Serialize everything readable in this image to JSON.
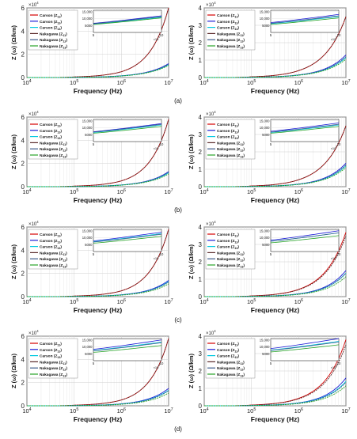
{
  "figure": {
    "row_labels": [
      "(a)",
      "(b)",
      "(c)",
      "(d)"
    ],
    "xlabel": "Frequency (Hz)",
    "ylabel": "Z (ω) (Ω/km)",
    "x_ticks": [
      "10",
      "10",
      "10",
      "10"
    ],
    "x_tick_exponents": [
      "4",
      "5",
      "6",
      "7"
    ],
    "y_multiplier": "×10",
    "y_multiplier_exp": "4",
    "inset_x_ticks": [
      "5",
      "10"
    ],
    "inset_x_multiplier": "×10",
    "inset_x_multiplier_exp": "6",
    "inset_y_ticks": [
      "5000",
      "10,000",
      "15,000"
    ],
    "legend": [
      {
        "prefix": "Carson (Z",
        "sub": "11",
        "color": "#d40000"
      },
      {
        "prefix": "Carson (Z",
        "sub": "12",
        "color": "#1a1ad6"
      },
      {
        "prefix": "Carson (Z",
        "sub": "13",
        "color": "#00c8e0"
      },
      {
        "prefix": "Nakagawa (Z",
        "sub": "11",
        "color": "#5a2a2a"
      },
      {
        "prefix": "Nakagawa (Z",
        "sub": "12",
        "color": "#3a5a8a"
      },
      {
        "prefix": "Nakagawa (Z",
        "sub": "13",
        "color": "#28a428"
      }
    ]
  },
  "chart_data": [
    {
      "type": "line",
      "panel": "a-left",
      "ylim": [
        0,
        60000
      ],
      "y_ticks": [
        0,
        2,
        4,
        6
      ],
      "x": [
        10000,
        100000,
        1000000,
        10000000
      ],
      "xscale": "log",
      "series": [
        {
          "name": "Carson (Z11)",
          "values": [
            0,
            500,
            5000,
            60000
          ]
        },
        {
          "name": "Carson (Z12)",
          "values": [
            0,
            150,
            1500,
            12000
          ]
        },
        {
          "name": "Carson (Z13)",
          "values": [
            0,
            140,
            1400,
            11000
          ]
        },
        {
          "name": "Nakagawa (Z11)",
          "values": [
            0,
            500,
            5000,
            60000
          ]
        },
        {
          "name": "Nakagawa (Z12)",
          "values": [
            0,
            140,
            1400,
            11500
          ]
        },
        {
          "name": "Nakagawa (Z13)",
          "values": [
            0,
            130,
            1300,
            10500
          ]
        }
      ]
    },
    {
      "type": "line",
      "panel": "a-right",
      "ylim": [
        0,
        40000
      ],
      "y_ticks": [
        0,
        1,
        2,
        3,
        4
      ],
      "x": [
        10000,
        100000,
        1000000,
        10000000
      ],
      "xscale": "log",
      "series": [
        {
          "name": "Carson (Z11)",
          "values": [
            0,
            400,
            4000,
            35000
          ]
        },
        {
          "name": "Carson (Z12)",
          "values": [
            0,
            150,
            1500,
            13000
          ]
        },
        {
          "name": "Carson (Z13)",
          "values": [
            0,
            140,
            1400,
            11500
          ]
        },
        {
          "name": "Nakagawa (Z11)",
          "values": [
            0,
            400,
            4000,
            35000
          ]
        },
        {
          "name": "Nakagawa (Z12)",
          "values": [
            0,
            145,
            1450,
            12000
          ]
        },
        {
          "name": "Nakagawa (Z13)",
          "values": [
            0,
            130,
            1300,
            10500
          ]
        }
      ]
    },
    {
      "type": "line",
      "panel": "b-left",
      "ylim": [
        0,
        60000
      ],
      "y_ticks": [
        0,
        2,
        4,
        6
      ],
      "x": [
        10000,
        100000,
        1000000,
        10000000
      ],
      "xscale": "log",
      "series": [
        {
          "name": "Carson (Z11)",
          "values": [
            0,
            500,
            5000,
            58000
          ]
        },
        {
          "name": "Carson (Z12)",
          "values": [
            0,
            150,
            1500,
            13000
          ]
        },
        {
          "name": "Carson (Z13)",
          "values": [
            0,
            140,
            1400,
            12000
          ]
        },
        {
          "name": "Nakagawa (Z11)",
          "values": [
            0,
            500,
            5000,
            58000
          ]
        },
        {
          "name": "Nakagawa (Z12)",
          "values": [
            0,
            145,
            1450,
            12500
          ]
        },
        {
          "name": "Nakagawa (Z13)",
          "values": [
            0,
            130,
            1300,
            11000
          ]
        }
      ]
    },
    {
      "type": "line",
      "panel": "b-right",
      "ylim": [
        0,
        40000
      ],
      "y_ticks": [
        0,
        1,
        2,
        3,
        4
      ],
      "x": [
        10000,
        100000,
        1000000,
        10000000
      ],
      "xscale": "log",
      "series": [
        {
          "name": "Carson (Z11)",
          "values": [
            0,
            400,
            4000,
            35000
          ]
        },
        {
          "name": "Carson (Z12)",
          "values": [
            0,
            150,
            1500,
            13500
          ]
        },
        {
          "name": "Carson (Z13)",
          "values": [
            0,
            140,
            1400,
            12000
          ]
        },
        {
          "name": "Nakagawa (Z11)",
          "values": [
            0,
            400,
            4000,
            35000
          ]
        },
        {
          "name": "Nakagawa (Z12)",
          "values": [
            0,
            145,
            1450,
            12500
          ]
        },
        {
          "name": "Nakagawa (Z13)",
          "values": [
            0,
            130,
            1300,
            11000
          ]
        }
      ]
    },
    {
      "type": "line",
      "panel": "c-left",
      "ylim": [
        0,
        60000
      ],
      "y_ticks": [
        0,
        2,
        4,
        6
      ],
      "x": [
        10000,
        100000,
        1000000,
        10000000
      ],
      "xscale": "log",
      "series": [
        {
          "name": "Carson (Z11)",
          "values": [
            0,
            500,
            5000,
            58000
          ]
        },
        {
          "name": "Carson (Z12)",
          "values": [
            0,
            160,
            1600,
            14000
          ]
        },
        {
          "name": "Carson (Z13)",
          "values": [
            0,
            150,
            1500,
            13000
          ]
        },
        {
          "name": "Nakagawa (Z11)",
          "values": [
            0,
            500,
            5000,
            58000
          ]
        },
        {
          "name": "Nakagawa (Z12)",
          "values": [
            0,
            150,
            1500,
            12500
          ]
        },
        {
          "name": "Nakagawa (Z13)",
          "values": [
            0,
            130,
            1300,
            11000
          ]
        }
      ]
    },
    {
      "type": "line",
      "panel": "c-right",
      "ylim": [
        0,
        40000
      ],
      "y_ticks": [
        0,
        1,
        2,
        3,
        4
      ],
      "x": [
        10000,
        100000,
        1000000,
        10000000
      ],
      "xscale": "log",
      "series": [
        {
          "name": "Carson (Z11)",
          "values": [
            0,
            420,
            4200,
            37000
          ]
        },
        {
          "name": "Carson (Z12)",
          "values": [
            0,
            160,
            1600,
            15000
          ]
        },
        {
          "name": "Carson (Z13)",
          "values": [
            0,
            150,
            1500,
            13500
          ]
        },
        {
          "name": "Nakagawa (Z11)",
          "values": [
            0,
            400,
            4000,
            35000
          ]
        },
        {
          "name": "Nakagawa (Z12)",
          "values": [
            0,
            150,
            1500,
            13500
          ]
        },
        {
          "name": "Nakagawa (Z13)",
          "values": [
            0,
            130,
            1300,
            11500
          ]
        }
      ]
    },
    {
      "type": "line",
      "panel": "d-left",
      "ylim": [
        0,
        60000
      ],
      "y_ticks": [
        0,
        2,
        4,
        6
      ],
      "x": [
        10000,
        100000,
        1000000,
        10000000
      ],
      "xscale": "log",
      "series": [
        {
          "name": "Carson (Z11)",
          "values": [
            0,
            500,
            5000,
            58000
          ]
        },
        {
          "name": "Carson (Z12)",
          "values": [
            0,
            170,
            1700,
            15000
          ]
        },
        {
          "name": "Carson (Z13)",
          "values": [
            0,
            155,
            1550,
            13500
          ]
        },
        {
          "name": "Nakagawa (Z11)",
          "values": [
            0,
            500,
            5000,
            58000
          ]
        },
        {
          "name": "Nakagawa (Z12)",
          "values": [
            0,
            150,
            1500,
            13000
          ]
        },
        {
          "name": "Nakagawa (Z13)",
          "values": [
            0,
            130,
            1300,
            11000
          ]
        }
      ]
    },
    {
      "type": "line",
      "panel": "d-right",
      "ylim": [
        0,
        40000
      ],
      "y_ticks": [
        0,
        1,
        2,
        3,
        4
      ],
      "x": [
        10000,
        100000,
        1000000,
        10000000
      ],
      "xscale": "log",
      "series": [
        {
          "name": "Carson (Z11)",
          "values": [
            0,
            430,
            4300,
            38000
          ]
        },
        {
          "name": "Carson (Z12)",
          "values": [
            0,
            170,
            1700,
            16000
          ]
        },
        {
          "name": "Carson (Z13)",
          "values": [
            0,
            160,
            1600,
            14000
          ]
        },
        {
          "name": "Nakagawa (Z11)",
          "values": [
            0,
            400,
            4000,
            35000
          ]
        },
        {
          "name": "Nakagawa (Z12)",
          "values": [
            0,
            150,
            1500,
            13500
          ]
        },
        {
          "name": "Nakagawa (Z13)",
          "values": [
            0,
            130,
            1300,
            11500
          ]
        }
      ]
    }
  ]
}
